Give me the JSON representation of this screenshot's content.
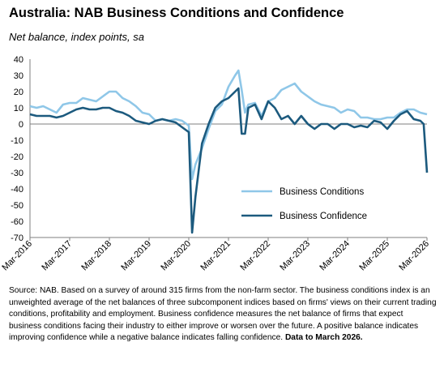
{
  "title": "Australia: NAB Business Conditions and Confidence",
  "subtitle": "Net balance, index points, sa",
  "source_text": "Source: NAB. Based on a survey of around 315 firms from the non-farm sector.  The business conditions index is an unweighted average of the net balances of three subcomponent indices based on firms' views on their current trading conditions, profitability and employment.  Business confidence measures the net balance of firms that expect business conditions facing their industry to either improve or worsen over the future.  A positive balance indicates improving confidence while a negative balance indicates falling confidence.",
  "source_bold": "Data to March 2026.",
  "chart_data": {
    "type": "line",
    "ylim": [
      -70,
      40
    ],
    "yticks": [
      40,
      30,
      20,
      10,
      0,
      -10,
      -20,
      -30,
      -40,
      -50,
      -60,
      -70
    ],
    "xlim": [
      "2016-03",
      "2026-03"
    ],
    "xticks": [
      "Mar-2016",
      "Mar-2017",
      "Mar-2018",
      "Mar-2019",
      "Mar-2020",
      "Mar-2021",
      "Mar-2022",
      "Mar-2023",
      "Mar-2024",
      "Mar-2025",
      "Mar-2026"
    ],
    "legend_position": "lower-right",
    "grid": false,
    "series": [
      {
        "name": "Business Conditions",
        "color": "#8fc7e8",
        "points": [
          [
            "2016-03",
            11
          ],
          [
            "2016-05",
            10
          ],
          [
            "2016-07",
            11
          ],
          [
            "2016-09",
            9
          ],
          [
            "2016-11",
            7
          ],
          [
            "2017-01",
            12
          ],
          [
            "2017-03",
            13
          ],
          [
            "2017-05",
            13
          ],
          [
            "2017-07",
            16
          ],
          [
            "2017-09",
            15
          ],
          [
            "2017-11",
            14
          ],
          [
            "2018-01",
            17
          ],
          [
            "2018-03",
            20
          ],
          [
            "2018-05",
            20
          ],
          [
            "2018-07",
            16
          ],
          [
            "2018-09",
            14
          ],
          [
            "2018-11",
            11
          ],
          [
            "2019-01",
            7
          ],
          [
            "2019-03",
            6
          ],
          [
            "2019-05",
            2
          ],
          [
            "2019-07",
            3
          ],
          [
            "2019-09",
            2
          ],
          [
            "2019-11",
            3
          ],
          [
            "2020-01",
            2
          ],
          [
            "2020-03",
            -1
          ],
          [
            "2020-04",
            -34
          ],
          [
            "2020-05",
            -25
          ],
          [
            "2020-07",
            -15
          ],
          [
            "2020-09",
            -3
          ],
          [
            "2020-11",
            8
          ],
          [
            "2021-01",
            12
          ],
          [
            "2021-03",
            23
          ],
          [
            "2021-05",
            30
          ],
          [
            "2021-06",
            33
          ],
          [
            "2021-07",
            21
          ],
          [
            "2021-08",
            7
          ],
          [
            "2021-09",
            12
          ],
          [
            "2021-11",
            13
          ],
          [
            "2022-01",
            5
          ],
          [
            "2022-03",
            14
          ],
          [
            "2022-05",
            16
          ],
          [
            "2022-07",
            21
          ],
          [
            "2022-09",
            23
          ],
          [
            "2022-11",
            25
          ],
          [
            "2023-01",
            20
          ],
          [
            "2023-03",
            17
          ],
          [
            "2023-05",
            14
          ],
          [
            "2023-07",
            12
          ],
          [
            "2023-09",
            11
          ],
          [
            "2023-11",
            10
          ],
          [
            "2024-01",
            7
          ],
          [
            "2024-03",
            9
          ],
          [
            "2024-05",
            8
          ],
          [
            "2024-07",
            4
          ],
          [
            "2024-09",
            4
          ],
          [
            "2024-11",
            3
          ],
          [
            "2025-01",
            3
          ],
          [
            "2025-03",
            4
          ],
          [
            "2025-05",
            4
          ],
          [
            "2025-07",
            7
          ],
          [
            "2025-09",
            9
          ],
          [
            "2025-11",
            9
          ],
          [
            "2026-01",
            7
          ],
          [
            "2026-03",
            6
          ]
        ]
      },
      {
        "name": "Business Confidence",
        "color": "#1c5a7e",
        "points": [
          [
            "2016-03",
            6
          ],
          [
            "2016-05",
            5
          ],
          [
            "2016-07",
            5
          ],
          [
            "2016-09",
            5
          ],
          [
            "2016-11",
            4
          ],
          [
            "2017-01",
            5
          ],
          [
            "2017-03",
            7
          ],
          [
            "2017-05",
            9
          ],
          [
            "2017-07",
            10
          ],
          [
            "2017-09",
            9
          ],
          [
            "2017-11",
            9
          ],
          [
            "2018-01",
            10
          ],
          [
            "2018-03",
            10
          ],
          [
            "2018-05",
            8
          ],
          [
            "2018-07",
            7
          ],
          [
            "2018-09",
            5
          ],
          [
            "2018-11",
            2
          ],
          [
            "2019-01",
            1
          ],
          [
            "2019-03",
            0
          ],
          [
            "2019-05",
            2
          ],
          [
            "2019-07",
            3
          ],
          [
            "2019-09",
            2
          ],
          [
            "2019-11",
            1
          ],
          [
            "2020-01",
            -2
          ],
          [
            "2020-03",
            -5
          ],
          [
            "2020-04",
            -67
          ],
          [
            "2020-05",
            -45
          ],
          [
            "2020-07",
            -12
          ],
          [
            "2020-09",
            0
          ],
          [
            "2020-11",
            10
          ],
          [
            "2021-01",
            14
          ],
          [
            "2021-03",
            16
          ],
          [
            "2021-05",
            20
          ],
          [
            "2021-06",
            22
          ],
          [
            "2021-07",
            -6
          ],
          [
            "2021-08",
            -6
          ],
          [
            "2021-09",
            10
          ],
          [
            "2021-11",
            12
          ],
          [
            "2022-01",
            3
          ],
          [
            "2022-03",
            14
          ],
          [
            "2022-05",
            10
          ],
          [
            "2022-07",
            3
          ],
          [
            "2022-09",
            5
          ],
          [
            "2022-11",
            0
          ],
          [
            "2023-01",
            5
          ],
          [
            "2023-03",
            0
          ],
          [
            "2023-05",
            -3
          ],
          [
            "2023-07",
            0
          ],
          [
            "2023-09",
            0
          ],
          [
            "2023-11",
            -3
          ],
          [
            "2024-01",
            0
          ],
          [
            "2024-03",
            0
          ],
          [
            "2024-05",
            -2
          ],
          [
            "2024-07",
            -1
          ],
          [
            "2024-09",
            -2
          ],
          [
            "2024-11",
            2
          ],
          [
            "2025-01",
            1
          ],
          [
            "2025-03",
            -3
          ],
          [
            "2025-05",
            2
          ],
          [
            "2025-07",
            6
          ],
          [
            "2025-09",
            8
          ],
          [
            "2025-11",
            3
          ],
          [
            "2026-01",
            2
          ],
          [
            "2026-02",
            0
          ],
          [
            "2026-03",
            -30
          ]
        ]
      }
    ]
  }
}
